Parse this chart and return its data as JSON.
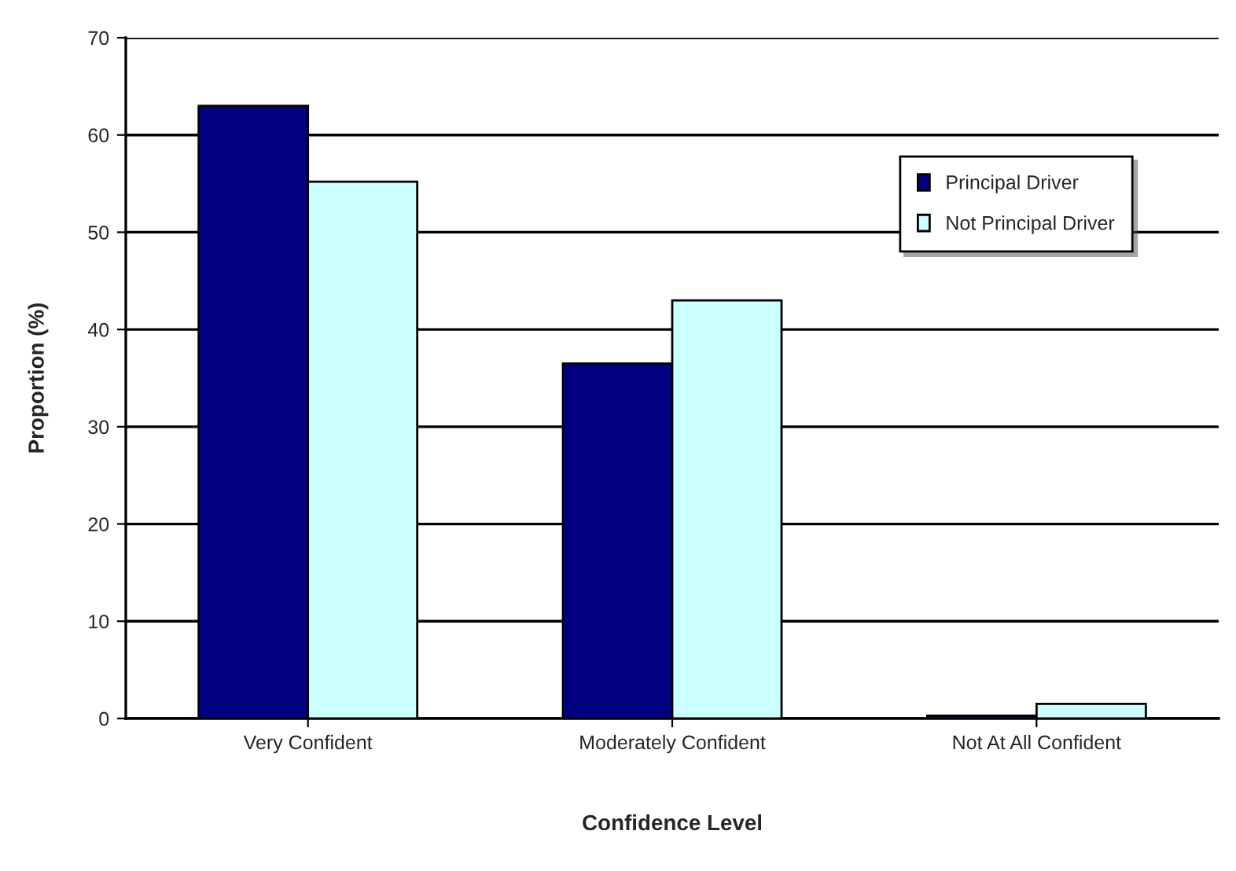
{
  "chart_data": {
    "type": "bar",
    "xlabel": "Confidence Level",
    "ylabel": "Proportion (%)",
    "categories": [
      "Very Confident",
      "Moderately Confident",
      "Not At All Confident"
    ],
    "series": [
      {
        "name": "Principal Driver",
        "color": "#000080",
        "values": [
          63,
          36.5,
          0.3
        ]
      },
      {
        "name": "Not Principal Driver",
        "color": "#ccffff",
        "values": [
          55.2,
          43,
          1.5
        ]
      }
    ],
    "ylim": [
      0,
      70
    ],
    "yticks": [
      0,
      10,
      20,
      30,
      40,
      50,
      60,
      70
    ],
    "grid": "y",
    "legend": "top right"
  }
}
